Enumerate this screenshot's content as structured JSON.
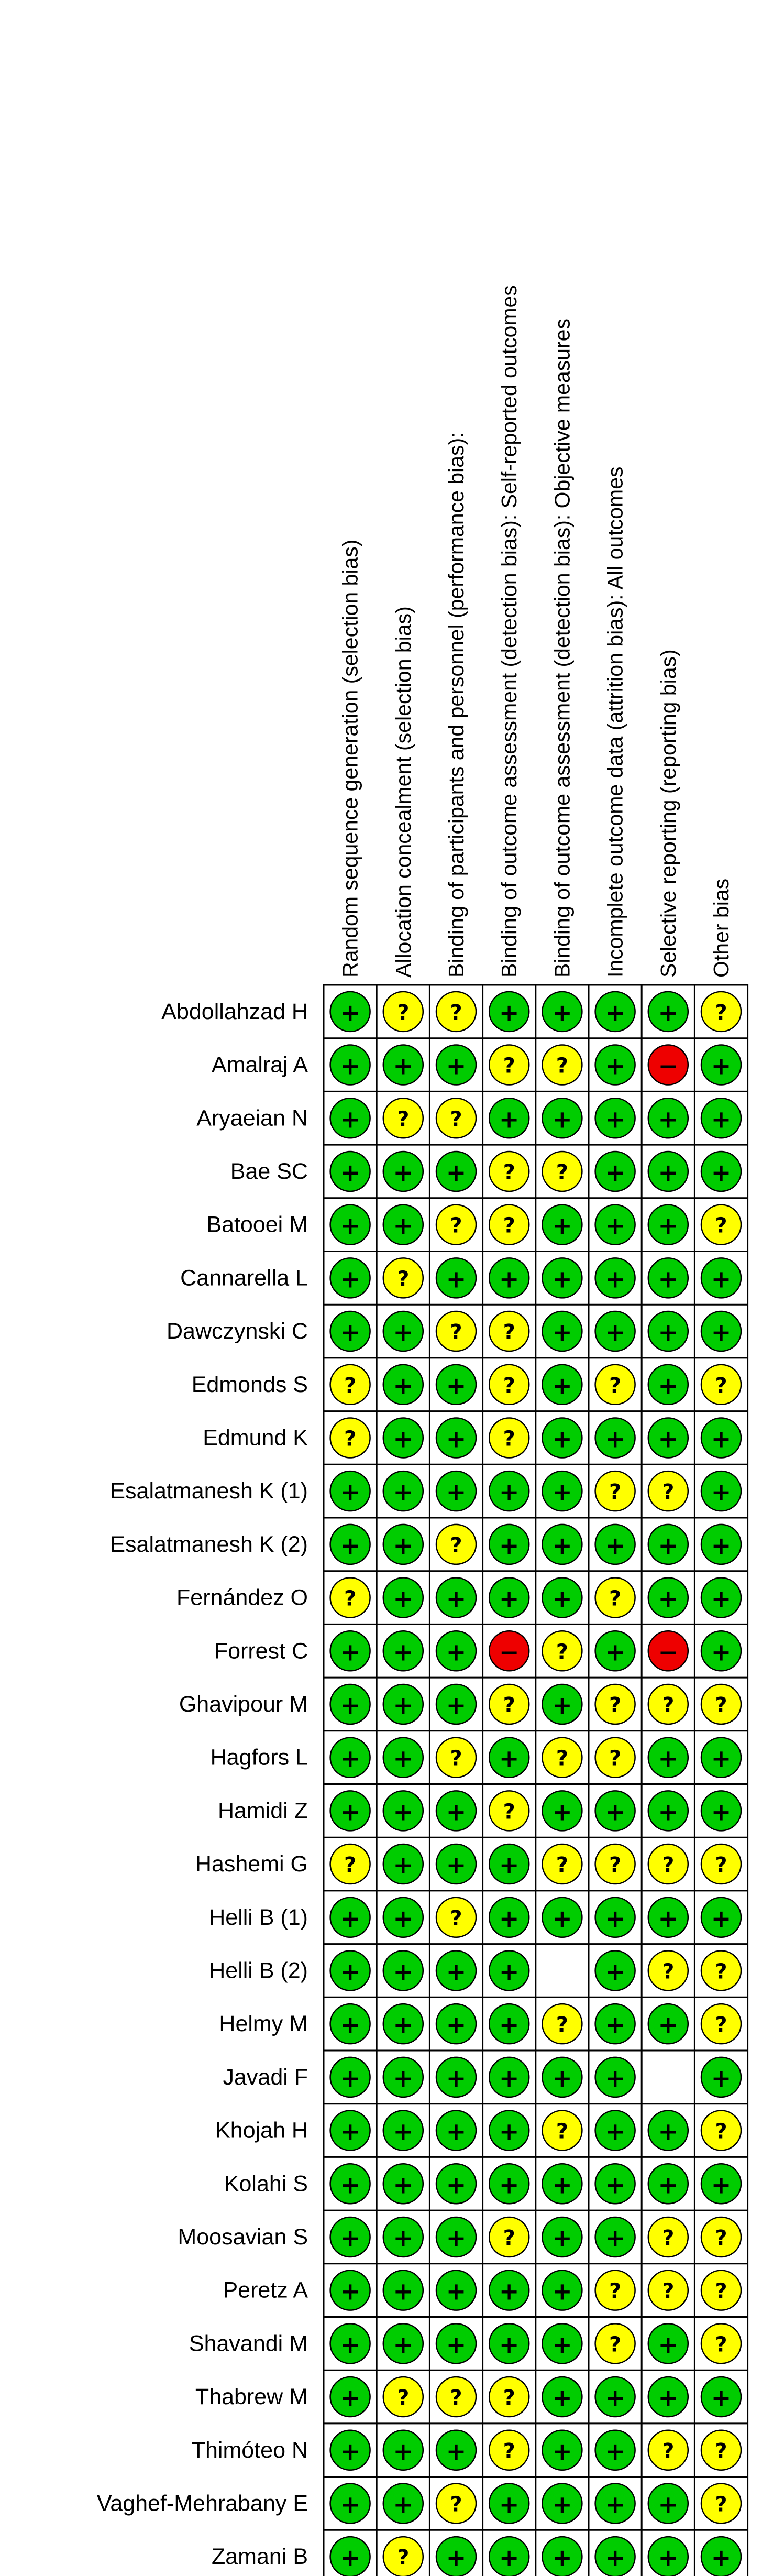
{
  "columns": [
    "Random sequence generation (selection bias)",
    "Allocation concealment (selection bias)",
    "Binding of participants and personnel (performance bias):",
    "Binding of outcome assessment (detection bias): Self-reported outcomes",
    "Binding of outcome assessment (detection bias): Objective measures",
    "Incomplete outcome data (attrition bias): All outcomes",
    "Selective reporting (reporting bias)",
    "Other bias"
  ],
  "symbols": {
    "low": "+",
    "unclear": "?",
    "high": "−"
  },
  "colors": {
    "low": "#00cc00",
    "unclear": "#ffff00",
    "high": "#ee0000"
  },
  "studies": [
    {
      "name": "Abdollahzad H",
      "ratings": [
        "low",
        "unclear",
        "unclear",
        "low",
        "low",
        "low",
        "low",
        "unclear"
      ]
    },
    {
      "name": "Amalraj A",
      "ratings": [
        "low",
        "low",
        "low",
        "unclear",
        "unclear",
        "low",
        "high",
        "low"
      ]
    },
    {
      "name": "Aryaeian N",
      "ratings": [
        "low",
        "unclear",
        "unclear",
        "low",
        "low",
        "low",
        "low",
        "low"
      ]
    },
    {
      "name": "Bae SC",
      "ratings": [
        "low",
        "low",
        "low",
        "unclear",
        "unclear",
        "low",
        "low",
        "low"
      ]
    },
    {
      "name": "Batooei M",
      "ratings": [
        "low",
        "low",
        "unclear",
        "unclear",
        "low",
        "low",
        "low",
        "unclear"
      ]
    },
    {
      "name": "Cannarella L",
      "ratings": [
        "low",
        "unclear",
        "low",
        "low",
        "low",
        "low",
        "low",
        "low"
      ]
    },
    {
      "name": "Dawczynski C",
      "ratings": [
        "low",
        "low",
        "unclear",
        "unclear",
        "low",
        "low",
        "low",
        "low"
      ]
    },
    {
      "name": "Edmonds S",
      "ratings": [
        "unclear",
        "low",
        "low",
        "unclear",
        "low",
        "unclear",
        "low",
        "unclear"
      ]
    },
    {
      "name": "Edmund K",
      "ratings": [
        "unclear",
        "low",
        "low",
        "unclear",
        "low",
        "low",
        "low",
        "low"
      ]
    },
    {
      "name": "Esalatmanesh K (1)",
      "ratings": [
        "low",
        "low",
        "low",
        "low",
        "low",
        "unclear",
        "unclear",
        "low"
      ]
    },
    {
      "name": "Esalatmanesh K (2)",
      "ratings": [
        "low",
        "low",
        "unclear",
        "low",
        "low",
        "low",
        "low",
        "low"
      ]
    },
    {
      "name": "Fernández O",
      "ratings": [
        "unclear",
        "low",
        "low",
        "low",
        "low",
        "unclear",
        "low",
        "low"
      ]
    },
    {
      "name": "Forrest C",
      "ratings": [
        "low",
        "low",
        "low",
        "high",
        "unclear",
        "low",
        "high",
        "low"
      ]
    },
    {
      "name": "Ghavipour M",
      "ratings": [
        "low",
        "low",
        "low",
        "unclear",
        "low",
        "unclear",
        "unclear",
        "unclear"
      ]
    },
    {
      "name": "Hagfors L",
      "ratings": [
        "low",
        "low",
        "unclear",
        "low",
        "unclear",
        "unclear",
        "low",
        "low"
      ]
    },
    {
      "name": "Hamidi Z",
      "ratings": [
        "low",
        "low",
        "low",
        "unclear",
        "low",
        "low",
        "low",
        "low"
      ]
    },
    {
      "name": "Hashemi G",
      "ratings": [
        "unclear",
        "low",
        "low",
        "low",
        "unclear",
        "unclear",
        "unclear",
        "unclear"
      ]
    },
    {
      "name": "Helli B (1)",
      "ratings": [
        "low",
        "low",
        "unclear",
        "low",
        "low",
        "low",
        "low",
        "low"
      ]
    },
    {
      "name": "Helli B (2)",
      "ratings": [
        "low",
        "low",
        "low",
        "low",
        null,
        "low",
        "unclear",
        "unclear"
      ]
    },
    {
      "name": "Helmy M",
      "ratings": [
        "low",
        "low",
        "low",
        "low",
        "unclear",
        "low",
        "low",
        "unclear"
      ]
    },
    {
      "name": "Javadi F",
      "ratings": [
        "low",
        "low",
        "low",
        "low",
        "low",
        "low",
        null,
        "low"
      ]
    },
    {
      "name": "Khojah H",
      "ratings": [
        "low",
        "low",
        "low",
        "low",
        "unclear",
        "low",
        "low",
        "unclear"
      ]
    },
    {
      "name": "Kolahi S",
      "ratings": [
        "low",
        "low",
        "low",
        "low",
        "low",
        "low",
        "low",
        "low"
      ]
    },
    {
      "name": "Moosavian S",
      "ratings": [
        "low",
        "low",
        "low",
        "unclear",
        "low",
        "low",
        "unclear",
        "unclear"
      ]
    },
    {
      "name": "Peretz A",
      "ratings": [
        "low",
        "low",
        "low",
        "low",
        "low",
        "unclear",
        "unclear",
        "unclear"
      ]
    },
    {
      "name": "Shavandi M",
      "ratings": [
        "low",
        "low",
        "low",
        "low",
        "low",
        "unclear",
        "low",
        "unclear"
      ]
    },
    {
      "name": "Thabrew M",
      "ratings": [
        "low",
        "unclear",
        "unclear",
        "unclear",
        "low",
        "low",
        "low",
        "low"
      ]
    },
    {
      "name": "Thimóteo N",
      "ratings": [
        "low",
        "low",
        "low",
        "unclear",
        "low",
        "low",
        "unclear",
        "unclear"
      ]
    },
    {
      "name": "Vaghef-Mehrabany E",
      "ratings": [
        "low",
        "low",
        "unclear",
        "low",
        "low",
        "low",
        "low",
        "unclear"
      ]
    },
    {
      "name": "Zamani B",
      "ratings": [
        "low",
        "unclear",
        "low",
        "low",
        "low",
        "low",
        "low",
        "low"
      ]
    }
  ]
}
